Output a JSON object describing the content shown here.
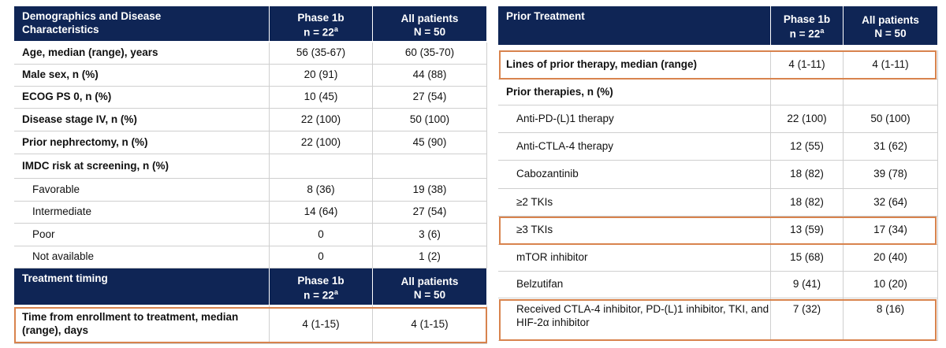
{
  "left": {
    "header": {
      "title": "Demographics and Disease Characteristics",
      "phase1b": {
        "line1": "Phase 1b",
        "line2": "n = 22",
        "sup": "a"
      },
      "all": {
        "line1": "All patients",
        "line2": "N = 50"
      }
    },
    "rows": [
      {
        "label": "Age, median (range), years",
        "phase1b": "56 (35-67)",
        "all": "60 (35-70)"
      },
      {
        "label": "Male sex, n (%)",
        "phase1b": "20 (91)",
        "all": "44 (88)"
      },
      {
        "label": "ECOG PS 0, n (%)",
        "phase1b": "10 (45)",
        "all": "27 (54)"
      },
      {
        "label": "Disease stage IV, n (%)",
        "phase1b": "22 (100)",
        "all": "50 (100)"
      },
      {
        "label": "Prior nephrectomy, n (%)",
        "phase1b": "22 (100)",
        "all": "45 (90)"
      },
      {
        "label": "IMDC risk at screening, n (%)"
      },
      {
        "label": "Favorable",
        "phase1b": "8 (36)",
        "all": "19 (38)"
      },
      {
        "label": "Intermediate",
        "phase1b": "14 (64)",
        "all": "27 (54)"
      },
      {
        "label": "Poor",
        "phase1b": "0",
        "all": "3 (6)"
      },
      {
        "label": "Not available",
        "phase1b": "0",
        "all": "1 (2)"
      }
    ],
    "timing_header": {
      "title": "Treatment timing",
      "phase1b": {
        "line1": "Phase 1b",
        "line2": "n = 22",
        "sup": "a"
      },
      "all": {
        "line1": "All patients",
        "line2": "N = 50"
      }
    },
    "timing_rows": [
      {
        "label": "Time from enrollment to treatment, median (range), days",
        "phase1b": "4 (1-15)",
        "all": "4 (1-15)"
      }
    ]
  },
  "right": {
    "header": {
      "title": "Prior Treatment",
      "phase1b": {
        "line1": "Phase 1b",
        "line2": "n = 22",
        "sup": "a"
      },
      "all": {
        "line1": "All patients",
        "line2": "N = 50"
      }
    },
    "rows": [
      {
        "label": "Lines of prior therapy, median (range)",
        "phase1b": "4 (1-11)",
        "all": "4 (1-11)"
      },
      {
        "label": "Prior therapies, n (%)"
      },
      {
        "label": "Anti-PD-(L)1 therapy",
        "phase1b": "22 (100)",
        "all": "50 (100)"
      },
      {
        "label": "Anti-CTLA-4 therapy",
        "phase1b": "12 (55)",
        "all": "31 (62)"
      },
      {
        "label": "Cabozantinib",
        "phase1b": "18 (82)",
        "all": "39 (78)"
      },
      {
        "label": "≥2 TKIs",
        "phase1b": "18 (82)",
        "all": "32 (64)"
      },
      {
        "label": "≥3 TKIs",
        "phase1b": "13 (59)",
        "all": "17 (34)"
      },
      {
        "label": "mTOR inhibitor",
        "phase1b": "15 (68)",
        "all": "20 (40)"
      },
      {
        "label": "Belzutifan",
        "phase1b": "9 (41)",
        "all": "10 (20)"
      },
      {
        "label": "Received CTLA-4 inhibitor, PD-(L)1 inhibitor, TKI, and HIF-2α inhibitor",
        "phase1b": "7 (32)",
        "all": "8 (16)"
      }
    ]
  }
}
